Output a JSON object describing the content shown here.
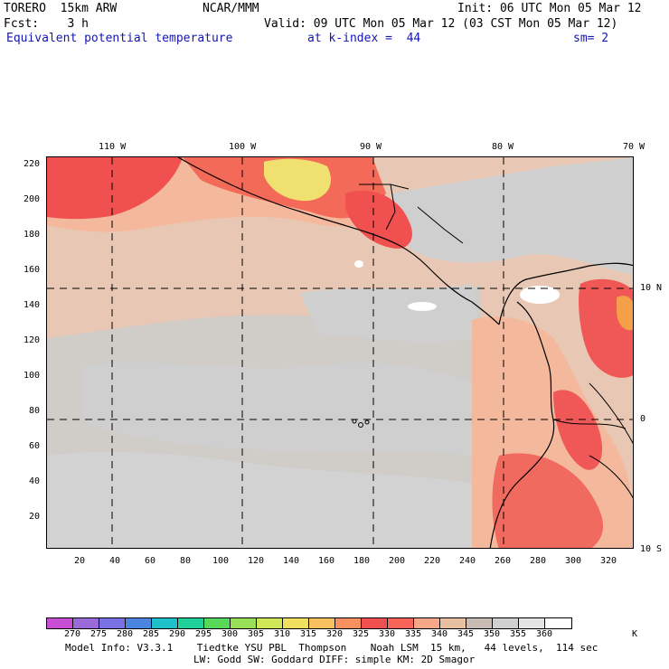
{
  "header": {
    "model": "TORERO  15km ARW",
    "org": "NCAR/MMM",
    "init": "Init: 06 UTC Mon 05 Mar 12",
    "fcst": "Fcst:    3 h",
    "valid": "Valid: 09 UTC Mon 05 Mar 12 (03 CST Mon 05 Mar 12)",
    "field": "Equivalent potential temperature",
    "level": "at k-index =  44",
    "smooth": "sm= 2"
  },
  "lon_labels": [
    "110 W",
    "100 W",
    "90 W",
    "80 W",
    "70 W"
  ],
  "lat_labels": [
    "10 N",
    "0",
    "10 S"
  ],
  "x_ticks": [
    "20",
    "40",
    "60",
    "80",
    "100",
    "120",
    "140",
    "160",
    "180",
    "200",
    "220",
    "240",
    "260",
    "280",
    "300",
    "320"
  ],
  "y_ticks": [
    "220",
    "200",
    "180",
    "160",
    "140",
    "120",
    "100",
    "80",
    "60",
    "40",
    "20"
  ],
  "colorbar": {
    "unit": "K",
    "labels": [
      "270",
      "275",
      "280",
      "285",
      "290",
      "295",
      "300",
      "305",
      "310",
      "315",
      "320",
      "325",
      "330",
      "335",
      "340",
      "345",
      "350",
      "355",
      "360"
    ],
    "colors": [
      "#c84fd4",
      "#9a6ad8",
      "#7a72e4",
      "#4a86e0",
      "#20c0c8",
      "#20d098",
      "#58d858",
      "#98e058",
      "#d0e858",
      "#f0e060",
      "#f8c060",
      "#f89060",
      "#f05050",
      "#f86458",
      "#f8a888",
      "#e8c0a0",
      "#c8bcb4",
      "#d0d0d0",
      "#e4e4e4",
      "#ffffff"
    ]
  },
  "footer": {
    "line1": "Model Info: V3.3.1    Tiedtke YSU PBL  Thompson    Noah LSM  15 km,   44 levels,  114 sec",
    "line2": "LW: Godd SW: Goddard DIFF: simple KM: 2D Smagor"
  }
}
